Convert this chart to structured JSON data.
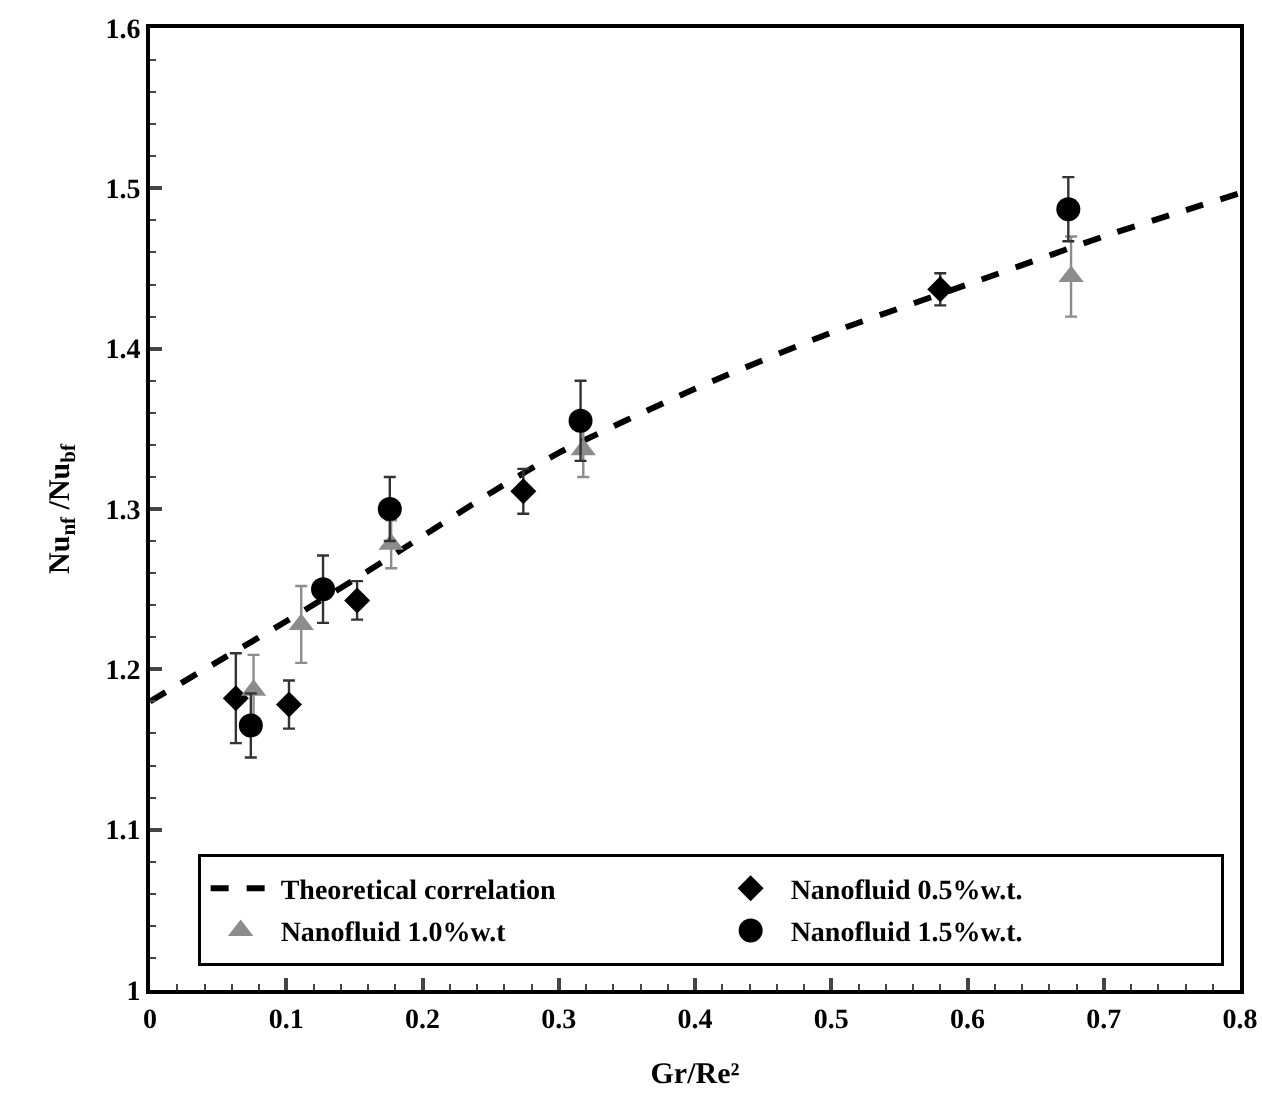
{
  "chart_data": {
    "type": "scatter",
    "xlabel": "Gr/Re²",
    "ylabel": "Nu$_{nf}$ /Nu$_{bf}$",
    "xlim": [
      0,
      0.8
    ],
    "xticks": [
      0,
      0.1,
      0.2,
      0.3,
      0.4,
      0.5,
      0.6,
      0.7,
      0.8
    ],
    "ylim": [
      1,
      1.6
    ],
    "yticks": [
      1,
      1.1,
      1.2,
      1.3,
      1.4,
      1.5,
      1.6
    ],
    "grid": false,
    "legend": "bottom",
    "series": [
      {
        "name": "Theoretical correlation",
        "type": "line",
        "line_style": "dashed",
        "marker": "none",
        "color": "#000000",
        "x": [
          0,
          0.05,
          0.1,
          0.15,
          0.2,
          0.25,
          0.3,
          0.4,
          0.5,
          0.6,
          0.7,
          0.8
        ],
        "values": [
          1.18,
          1.205,
          1.23,
          1.256,
          1.283,
          1.31,
          1.335,
          1.375,
          1.41,
          1.44,
          1.47,
          1.497
        ]
      },
      {
        "name": "Nanofluid 0.5%w.t.",
        "marker": "diamond",
        "color": "#000000",
        "x": [
          0.063,
          0.102,
          0.152,
          0.274,
          0.58
        ],
        "values": [
          1.182,
          1.178,
          1.243,
          1.311,
          1.437
        ],
        "errors": [
          0.028,
          0.015,
          0.012,
          0.014,
          0.01
        ]
      },
      {
        "name": "Nanofluid 1.0%w.t",
        "marker": "triangle",
        "color": "#8c8c8c",
        "x": [
          0.076,
          0.111,
          0.177,
          0.318,
          0.676
        ],
        "values": [
          1.187,
          1.228,
          1.278,
          1.337,
          1.445
        ],
        "errors": [
          0.022,
          0.024,
          0.015,
          0.017,
          0.025
        ]
      },
      {
        "name": "Nanofluid 1.5%w.t.",
        "marker": "circle",
        "color": "#000000",
        "x": [
          0.074,
          0.127,
          0.176,
          0.316,
          0.674
        ],
        "values": [
          1.165,
          1.25,
          1.3,
          1.355,
          1.487
        ],
        "errors": [
          0.02,
          0.021,
          0.02,
          0.025,
          0.02
        ]
      }
    ]
  }
}
